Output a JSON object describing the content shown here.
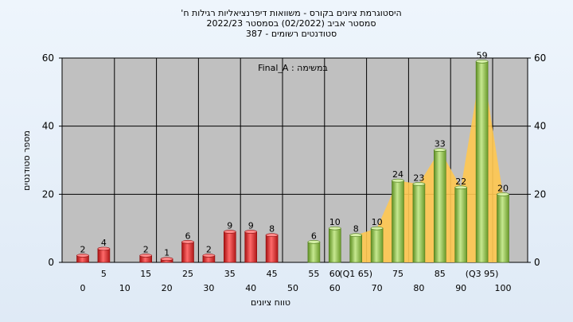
{
  "chart_data": {
    "type": "bar",
    "title": [
      "'היסטוגרמת ציונים בקורס - משוואות דיפרנציאליות רגילות ח",
      "2022/23  סמסטר אביב  (02/2022)  בסמסטר",
      "387 - סטודנטים רשומים"
    ],
    "annotation": "Final_A : במשימה",
    "xlabel": "טווח ציונים",
    "ylabel": "מספר סטודנטים",
    "ylim": [
      0,
      60
    ],
    "yticks": [
      0,
      20,
      40,
      60
    ],
    "grid": true,
    "x_tick_labels_top": [
      "5",
      "15",
      "25",
      "35",
      "45",
      "55",
      "60",
      "(Q1 65)",
      "75",
      "85",
      "(Q3 95)"
    ],
    "x_tick_labels_bottom": [
      "0",
      "10",
      "20",
      "30",
      "40",
      "50",
      "60",
      "70",
      "80",
      "90",
      "100"
    ],
    "bars": [
      {
        "x": 0,
        "value": 2,
        "color": "red"
      },
      {
        "x": 5,
        "value": 4,
        "color": "red"
      },
      {
        "x": 10,
        "value": 0,
        "color": "red"
      },
      {
        "x": 15,
        "value": 2,
        "color": "red"
      },
      {
        "x": 20,
        "value": 1,
        "color": "red"
      },
      {
        "x": 25,
        "value": 6,
        "color": "red"
      },
      {
        "x": 30,
        "value": 2,
        "color": "red"
      },
      {
        "x": 35,
        "value": 9,
        "color": "red"
      },
      {
        "x": 40,
        "value": 9,
        "color": "red"
      },
      {
        "x": 45,
        "value": 8,
        "color": "red"
      },
      {
        "x": 50,
        "value": 0,
        "color": "red"
      },
      {
        "x": 55,
        "value": 6,
        "color": "green"
      },
      {
        "x": 60,
        "value": 10,
        "color": "green"
      },
      {
        "x": 65,
        "value": 8,
        "color": "green"
      },
      {
        "x": 70,
        "value": 10,
        "color": "green"
      },
      {
        "x": 75,
        "value": 24,
        "color": "green"
      },
      {
        "x": 80,
        "value": 23,
        "color": "green"
      },
      {
        "x": 85,
        "value": 33,
        "color": "green"
      },
      {
        "x": 90,
        "value": 22,
        "color": "green"
      },
      {
        "x": 95,
        "value": 59,
        "color": "green"
      },
      {
        "x": 100,
        "value": 20,
        "color": "green"
      }
    ],
    "shaded_area_from": 65,
    "colors": {
      "plot_bg": "#c0c0c0",
      "red_bar": "#e03030",
      "green_bar": "#8cc048",
      "area": "#ffc850"
    }
  }
}
